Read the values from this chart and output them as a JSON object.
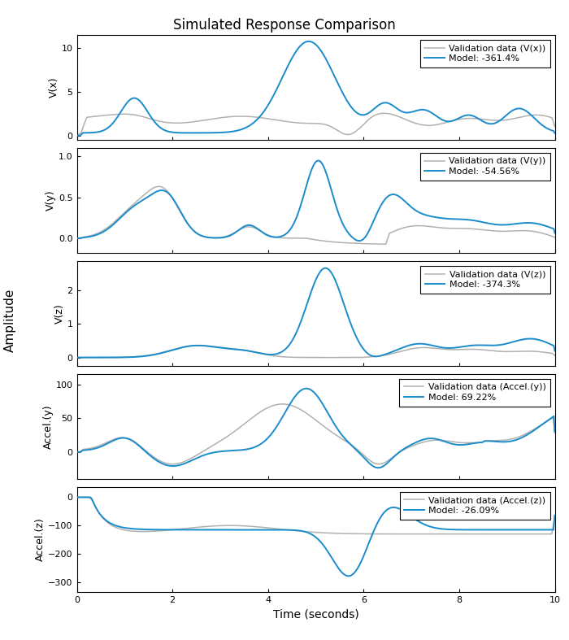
{
  "title": "Simulated Response Comparison",
  "xlabel": "Time (seconds)",
  "ylabel_global": "Amplitude",
  "axes": [
    {
      "ylabel": "V(x)",
      "legend": [
        "Validation data (V(x))",
        "Model: -361.4%"
      ],
      "ylim": [
        -0.5,
        11.5
      ],
      "yticks": [
        0,
        5,
        10
      ]
    },
    {
      "ylabel": "V(y)",
      "legend": [
        "Validation data (V(y))",
        "Model: -54.56%"
      ],
      "ylim": [
        -0.18,
        1.1
      ],
      "yticks": [
        0.0,
        0.5,
        1.0
      ]
    },
    {
      "ylabel": "V(z)",
      "legend": [
        "Validation data (V(z))",
        "Model: -374.3%"
      ],
      "ylim": [
        -0.25,
        2.85
      ],
      "yticks": [
        0,
        1,
        2
      ]
    },
    {
      "ylabel": "Accel.(y)",
      "legend": [
        "Validation data (Accel.(y))",
        "Model: 69.22%"
      ],
      "ylim": [
        -40,
        115
      ],
      "yticks": [
        0,
        50,
        100
      ]
    },
    {
      "ylabel": "Accel.(z)",
      "legend": [
        "Validation data (Accel.(z))",
        "Model: -26.09%"
      ],
      "ylim": [
        -335,
        35
      ],
      "yticks": [
        -300,
        -200,
        -100,
        0
      ]
    }
  ],
  "validation_color": "#b0b0b0",
  "model_color": "#1a8ccc",
  "validation_linewidth": 1.1,
  "model_linewidth": 1.4,
  "xlim": [
    0,
    10
  ],
  "xticks": [
    0,
    2,
    4,
    6,
    8,
    10
  ],
  "title_fontsize": 12,
  "axis_label_fontsize": 9,
  "legend_fontsize": 8,
  "tick_fontsize": 8
}
